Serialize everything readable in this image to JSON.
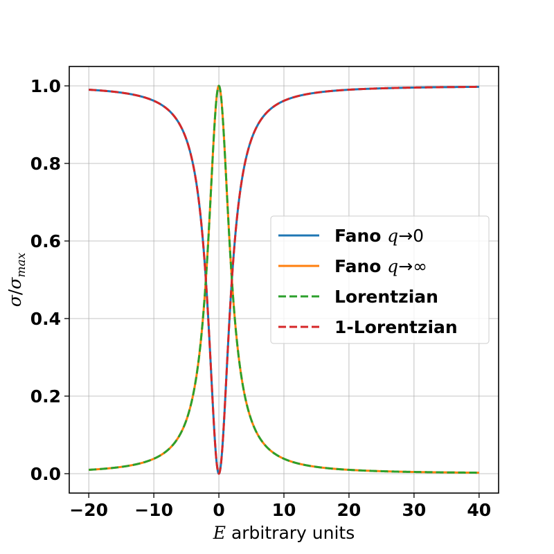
{
  "chart_data": {
    "type": "line",
    "xlabel_var": "E",
    "xlabel_text": " arbitrary units",
    "ylabel_num": "σ",
    "ylabel_slash": "/",
    "ylabel_den": "σ",
    "ylabel_sub": "max",
    "xlim": [
      -23,
      43
    ],
    "ylim": [
      -0.05,
      1.05
    ],
    "x_ticks": [
      -20,
      -10,
      0,
      10,
      20,
      30,
      40
    ],
    "x_tick_labels": [
      "−20",
      "−10",
      "0",
      "10",
      "20",
      "30",
      "40"
    ],
    "y_ticks": [
      0.0,
      0.2,
      0.4,
      0.6,
      0.8,
      1.0
    ],
    "y_tick_labels": [
      "0.0",
      "0.2",
      "0.4",
      "0.6",
      "0.8",
      "1.0"
    ],
    "grid": true,
    "legend_position": "center-right",
    "x_range": [
      -20,
      40
    ],
    "lorentz_half_width": 2,
    "series": [
      {
        "id": "fano-q0",
        "name_bold": "Fano ",
        "name_var": "q",
        "name_sym": "→0",
        "color": "#1f77b4",
        "style": "solid",
        "shape": "dip"
      },
      {
        "id": "fano-qinf",
        "name_bold": "Fano ",
        "name_var": "q",
        "name_sym": "→∞",
        "color": "#ff7f0e",
        "style": "solid",
        "shape": "peak"
      },
      {
        "id": "lorentzian",
        "name_bold": "Lorentzian",
        "name_var": "",
        "name_sym": "",
        "color": "#2ca02c",
        "style": "dashed",
        "shape": "peak"
      },
      {
        "id": "one-minus-lorentzian",
        "name_bold": "1-Lorentzian",
        "name_var": "",
        "name_sym": "",
        "color": "#d62728",
        "style": "dashed",
        "shape": "dip"
      }
    ]
  }
}
